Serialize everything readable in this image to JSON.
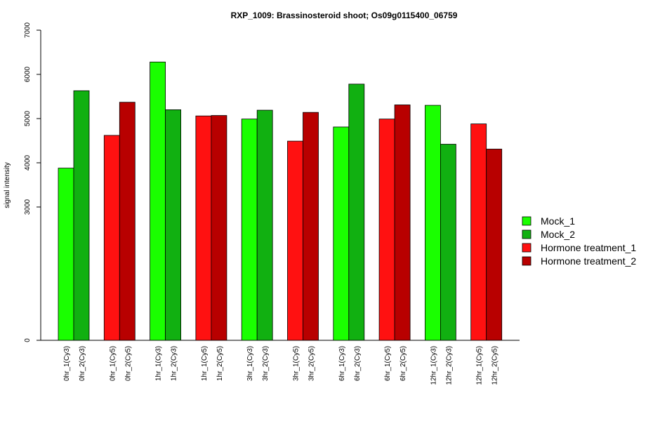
{
  "chart_data": {
    "type": "bar",
    "title": "RXP_1009: Brassinosteroid shoot; Os09g0115400_06759",
    "ylabel": "signal intensity",
    "xlabel": "",
    "y_ticks": [
      0,
      3000,
      4000,
      5000,
      6000,
      7000
    ],
    "ylim": [
      0,
      7000
    ],
    "axis_break": "between 0 and 3000",
    "legend_position": "right",
    "colors": {
      "Mock_1": "#1aff00",
      "Mock_2": "#11b011",
      "Hormone treatment_1": "#ff1111",
      "Hormone treatment_2": "#b80000"
    },
    "legend": [
      "Mock_1",
      "Mock_2",
      "Hormone treatment_1",
      "Hormone treatment_2"
    ],
    "bars": [
      {
        "label": "0hr_1(Cy3)",
        "series": "Mock_1",
        "value": 3880
      },
      {
        "label": "0hr_2(Cy3)",
        "series": "Mock_2",
        "value": 5630
      },
      {
        "label": "0hr_1(Cy5)",
        "series": "Hormone treatment_1",
        "value": 4620
      },
      {
        "label": "0hr_2(Cy5)",
        "series": "Hormone treatment_2",
        "value": 5370
      },
      {
        "label": "1hr_1(Cy3)",
        "series": "Mock_1",
        "value": 6280
      },
      {
        "label": "1hr_2(Cy3)",
        "series": "Mock_2",
        "value": 5200
      },
      {
        "label": "1hr_1(Cy5)",
        "series": "Hormone treatment_1",
        "value": 5060
      },
      {
        "label": "1hr_2(Cy5)",
        "series": "Hormone treatment_2",
        "value": 5070
      },
      {
        "label": "3hr_1(Cy3)",
        "series": "Mock_1",
        "value": 4990
      },
      {
        "label": "3hr_2(Cy3)",
        "series": "Mock_2",
        "value": 5190
      },
      {
        "label": "3hr_1(Cy5)",
        "series": "Hormone treatment_1",
        "value": 4490
      },
      {
        "label": "3hr_2(Cy5)",
        "series": "Hormone treatment_2",
        "value": 5140
      },
      {
        "label": "6hr_1(Cy3)",
        "series": "Mock_1",
        "value": 4810
      },
      {
        "label": "6hr_2(Cy3)",
        "series": "Mock_2",
        "value": 5780
      },
      {
        "label": "6hr_1(Cy5)",
        "series": "Hormone treatment_1",
        "value": 4990
      },
      {
        "label": "6hr_2(Cy5)",
        "series": "Hormone treatment_2",
        "value": 5310
      },
      {
        "label": "12hr_1(Cy3)",
        "series": "Mock_1",
        "value": 5300
      },
      {
        "label": "12hr_2(Cy3)",
        "series": "Mock_2",
        "value": 4420
      },
      {
        "label": "12hr_1(Cy5)",
        "series": "Hormone treatment_1",
        "value": 4880
      },
      {
        "label": "12hr_2(Cy5)",
        "series": "Hormone treatment_2",
        "value": 4310
      }
    ]
  }
}
